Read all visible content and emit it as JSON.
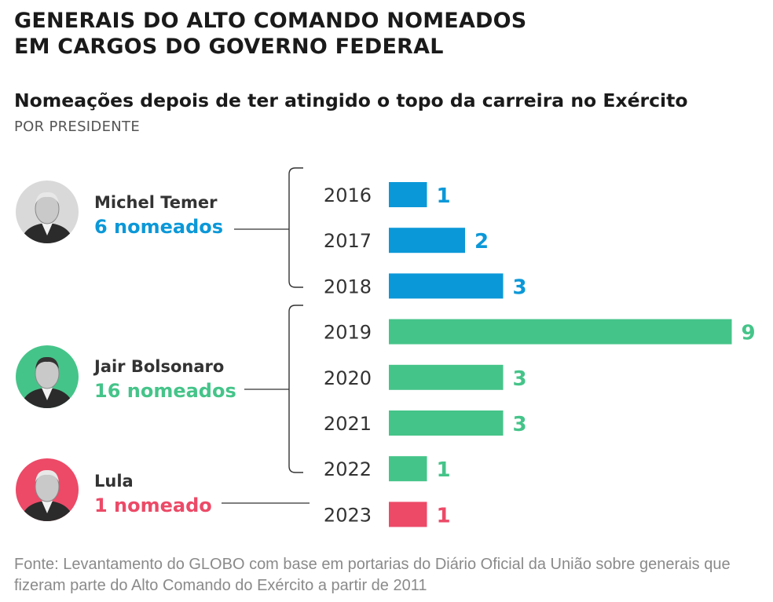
{
  "title_lines": [
    "GENERAIS DO ALTO COMANDO NOMEADOS",
    "EM CARGOS DO GOVERNO FEDERAL"
  ],
  "subtitle": "Nomeações depois de ter atingido o topo da carreira no Exército",
  "subsubtitle": "POR PRESIDENTE",
  "source": "Fonte: Levantamento do GLOBO com base em portarias do Diário Oficial da União sobre generais que fizeram parte do Alto Comando do Exército a partir de 2011",
  "presidents": [
    {
      "name": "Michel Temer",
      "count_label": "6 nomeados",
      "color": "#0b98d8"
    },
    {
      "name": "Jair Bolsonaro",
      "count_label": "16 nomeados",
      "color": "#45c489"
    },
    {
      "name": "Lula",
      "count_label": "1 nomeado",
      "color": "#ec4a67"
    }
  ],
  "chart_data": {
    "type": "bar",
    "orientation": "horizontal",
    "categories": [
      "2016",
      "2017",
      "2018",
      "2019",
      "2020",
      "2021",
      "2022",
      "2023"
    ],
    "values": [
      1,
      2,
      3,
      9,
      3,
      3,
      1,
      1
    ],
    "groups": [
      {
        "president": "Michel Temer",
        "years": [
          "2016",
          "2017",
          "2018"
        ]
      },
      {
        "president": "Jair Bolsonaro",
        "years": [
          "2019",
          "2020",
          "2021",
          "2022"
        ]
      },
      {
        "president": "Lula",
        "years": [
          "2023"
        ]
      }
    ],
    "colors": [
      "#0b98d8",
      "#0b98d8",
      "#0b98d8",
      "#45c489",
      "#45c489",
      "#45c489",
      "#45c489",
      "#ec4a67"
    ],
    "xlim": [
      0,
      9
    ],
    "grid": false,
    "legend": "none"
  }
}
